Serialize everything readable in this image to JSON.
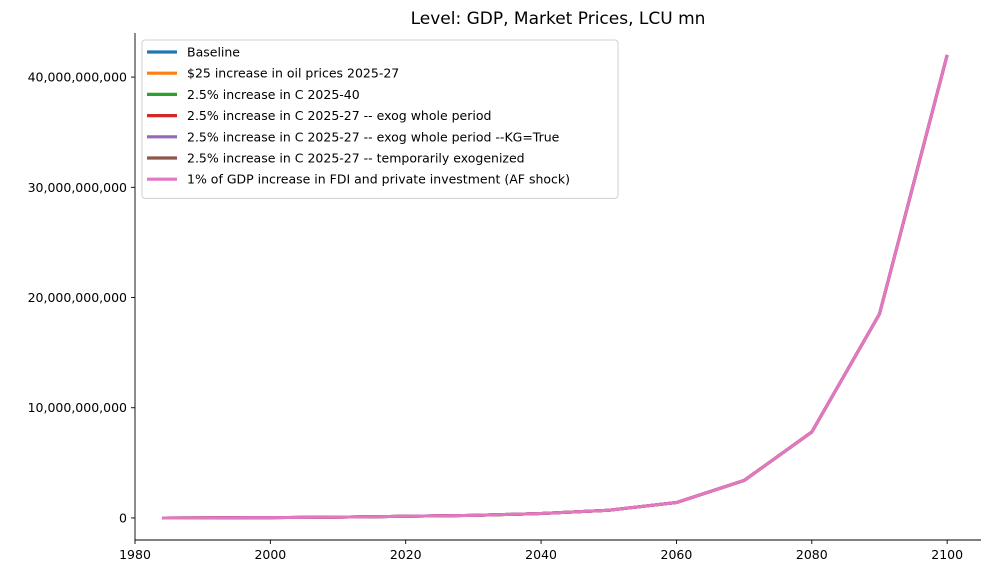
{
  "chart_data": {
    "type": "line",
    "title": "Level: GDP, Market Prices, LCU mn",
    "xlabel": "",
    "ylabel": "",
    "xlim": [
      1980,
      2105
    ],
    "ylim": [
      -2000000000,
      44000000000
    ],
    "xticks": [
      1980,
      2000,
      2020,
      2040,
      2060,
      2080,
      2100
    ],
    "yticks": [
      0,
      10000000000,
      20000000000,
      30000000000,
      40000000000
    ],
    "ytick_labels": [
      "0",
      "10,000,000,000",
      "20,000,000,000",
      "30,000,000,000",
      "40,000,000,000"
    ],
    "grid": false,
    "legend_position": "top-left",
    "x": [
      1984,
      1990,
      2000,
      2010,
      2020,
      2030,
      2040,
      2050,
      2060,
      2070,
      2080,
      2090,
      2100
    ],
    "series": [
      {
        "name": "Baseline",
        "color": "#1f77b4",
        "values": [
          0,
          10000000,
          30000000,
          80000000,
          150000000,
          230000000,
          400000000,
          700000000,
          1400000000,
          3400000000,
          7800000000,
          18500000000,
          42000000000
        ]
      },
      {
        "name": "$25 increase in oil prices 2025-27",
        "color": "#ff7f0e",
        "values": [
          0,
          10000000,
          30000000,
          80000000,
          150000000,
          230000000,
          400000000,
          700000000,
          1400000000,
          3400000000,
          7800000000,
          18500000000,
          42000000000
        ]
      },
      {
        "name": "2.5% increase in C 2025-40",
        "color": "#2ca02c",
        "values": [
          0,
          10000000,
          30000000,
          80000000,
          150000000,
          230000000,
          400000000,
          700000000,
          1400000000,
          3400000000,
          7800000000,
          18500000000,
          42000000000
        ]
      },
      {
        "name": "2.5% increase in C 2025-27 -- exog whole period",
        "color": "#d62728",
        "values": [
          0,
          10000000,
          30000000,
          80000000,
          150000000,
          230000000,
          400000000,
          700000000,
          1400000000,
          3400000000,
          7800000000,
          18500000000,
          42000000000
        ]
      },
      {
        "name": "2.5% increase in C 2025-27 -- exog whole period --KG=True",
        "color": "#9467bd",
        "values": [
          0,
          10000000,
          30000000,
          80000000,
          150000000,
          230000000,
          400000000,
          700000000,
          1400000000,
          3400000000,
          7800000000,
          18500000000,
          42000000000
        ]
      },
      {
        "name": "2.5% increase in C 2025-27 -- temporarily exogenized",
        "color": "#8c564b",
        "values": [
          0,
          10000000,
          30000000,
          80000000,
          150000000,
          230000000,
          400000000,
          700000000,
          1400000000,
          3400000000,
          7800000000,
          18500000000,
          42000000000
        ]
      },
      {
        "name": "1% of GDP increase in FDI and private investment (AF shock)",
        "color": "#e377c2",
        "values": [
          0,
          10000000,
          30000000,
          80000000,
          150000000,
          230000000,
          400000000,
          700000000,
          1400000000,
          3400000000,
          7800000000,
          18500000000,
          42000000000
        ]
      }
    ]
  }
}
